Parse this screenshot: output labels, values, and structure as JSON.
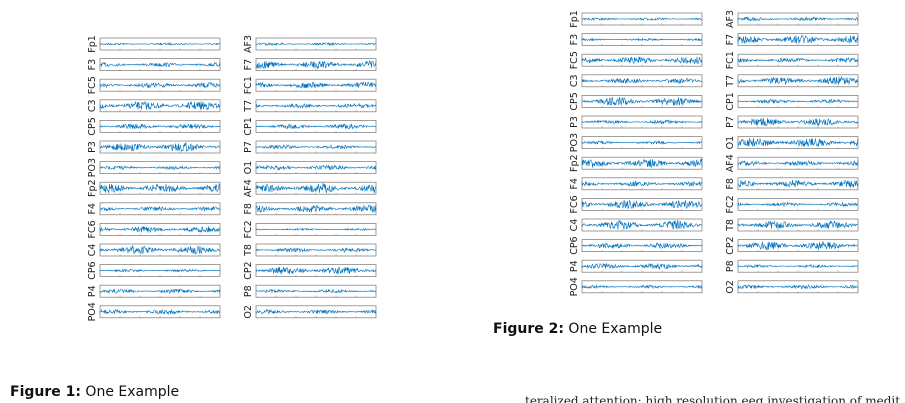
{
  "figures": [
    {
      "caption": {
        "label": "Figure 1:",
        "text": "One Example"
      },
      "columns": [
        [
          "Fp1",
          "F3",
          "FC5",
          "C3",
          "CP5",
          "P3",
          "PO3",
          "Fp2",
          "F4",
          "FC6",
          "C4",
          "CP6",
          "P4",
          "PO4"
        ],
        [
          "AF3",
          "F7",
          "FC1",
          "T7",
          "CP1",
          "P7",
          "O1",
          "AF4",
          "F8",
          "FC2",
          "T8",
          "CP2",
          "P8",
          "O2"
        ]
      ]
    },
    {
      "caption": {
        "label": "Figure 2:",
        "text": "One Example"
      },
      "columns": [
        [
          "Fp1",
          "F3",
          "FC5",
          "C3",
          "CP5",
          "P3",
          "PO3",
          "Fp2",
          "F4",
          "FC6",
          "C4",
          "CP6",
          "P4",
          "PO4"
        ],
        [
          "AF3",
          "F7",
          "FC1",
          "T7",
          "CP1",
          "P7",
          "O1",
          "AF4",
          "F8",
          "FC2",
          "T8",
          "CP2",
          "P8",
          "O2"
        ]
      ]
    }
  ],
  "footer_text": "teralized attention: high resolution eeg investigation of medit"
}
